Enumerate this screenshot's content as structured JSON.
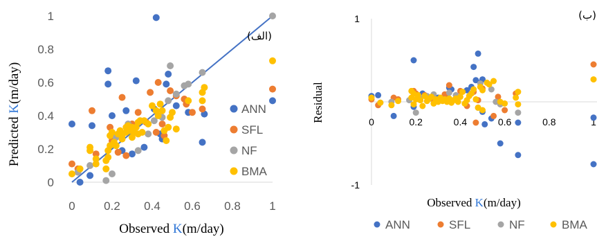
{
  "colors": {
    "ANN": "#4472c4",
    "SFL": "#ed7d31",
    "NF": "#a5a5a5",
    "BMA": "#ffc000",
    "fit_line": "#4472c4",
    "axis": "#d9d9d9",
    "k_text": "#2e75d6"
  },
  "chart_data": [
    {
      "type": "scatter",
      "panel_label": "(الف)",
      "ylabel_prefix": "Predicted ",
      "ylabel_k": "K",
      "ylabel_suffix": "(m/day)",
      "xlabel_prefix": "Observed ",
      "xlabel_k": "K",
      "xlabel_suffix": "(m/day)",
      "xlim": [
        0,
        1
      ],
      "ylim": [
        0,
        1
      ],
      "xticks": [
        "0",
        "0.2",
        "0.4",
        "0.6",
        "0.8",
        "1"
      ],
      "yticks": [
        "0",
        "0.2",
        "0.4",
        "0.6",
        "0.8",
        "1"
      ],
      "grid": false,
      "legend_position": "right",
      "reference_line": [
        [
          0,
          0
        ],
        [
          1,
          1
        ]
      ],
      "series": [
        {
          "name": "ANN",
          "points": [
            [
              0.0,
              0.35
            ],
            [
              0.04,
              0.0
            ],
            [
              0.09,
              0.04
            ],
            [
              0.1,
              0.34
            ],
            [
              0.18,
              0.59
            ],
            [
              0.18,
              0.67
            ],
            [
              0.2,
              0.4
            ],
            [
              0.25,
              0.19
            ],
            [
              0.27,
              0.43
            ],
            [
              0.28,
              0.31
            ],
            [
              0.3,
              0.17
            ],
            [
              0.32,
              0.61
            ],
            [
              0.36,
              0.21
            ],
            [
              0.41,
              0.44
            ],
            [
              0.42,
              0.99
            ],
            [
              0.44,
              0.29
            ],
            [
              0.45,
              0.26
            ],
            [
              0.47,
              0.59
            ],
            [
              0.48,
              0.65
            ],
            [
              0.52,
              0.46
            ],
            [
              0.58,
              0.42
            ],
            [
              0.65,
              0.24
            ],
            [
              0.66,
              0.41
            ],
            [
              1.0,
              0.49
            ]
          ]
        },
        {
          "name": "SFL",
          "points": [
            [
              0.0,
              0.11
            ],
            [
              0.03,
              0.08
            ],
            [
              0.1,
              0.43
            ],
            [
              0.12,
              0.17
            ],
            [
              0.19,
              0.33
            ],
            [
              0.2,
              0.25
            ],
            [
              0.23,
              0.18
            ],
            [
              0.25,
              0.51
            ],
            [
              0.27,
              0.16
            ],
            [
              0.3,
              0.35
            ],
            [
              0.33,
              0.42
            ],
            [
              0.37,
              0.36
            ],
            [
              0.39,
              0.54
            ],
            [
              0.42,
              0.3
            ],
            [
              0.43,
              0.6
            ],
            [
              0.45,
              0.35
            ],
            [
              0.46,
              0.28
            ],
            [
              0.49,
              0.55
            ],
            [
              0.52,
              0.52
            ],
            [
              0.56,
              0.5
            ],
            [
              0.57,
              0.47
            ],
            [
              0.6,
              0.42
            ],
            [
              0.65,
              0.44
            ],
            [
              1.0,
              0.56
            ]
          ]
        },
        {
          "name": "NF",
          "points": [
            [
              0.03,
              0.06
            ],
            [
              0.09,
              0.1
            ],
            [
              0.17,
              0.01
            ],
            [
              0.2,
              0.05
            ],
            [
              0.22,
              0.27
            ],
            [
              0.28,
              0.35
            ],
            [
              0.33,
              0.19
            ],
            [
              0.38,
              0.29
            ],
            [
              0.41,
              0.37
            ],
            [
              0.45,
              0.39
            ],
            [
              0.48,
              0.49
            ],
            [
              0.49,
              0.7
            ],
            [
              0.52,
              0.53
            ],
            [
              0.56,
              0.58
            ],
            [
              0.58,
              0.59
            ],
            [
              0.65,
              0.66
            ],
            [
              1.0,
              1.0
            ]
          ]
        },
        {
          "name": "BMA",
          "points": [
            [
              0.0,
              0.05
            ],
            [
              0.04,
              0.08
            ],
            [
              0.09,
              0.19
            ],
            [
              0.09,
              0.21
            ],
            [
              0.12,
              0.11
            ],
            [
              0.12,
              0.14
            ],
            [
              0.17,
              0.08
            ],
            [
              0.17,
              0.13
            ],
            [
              0.18,
              0.15
            ],
            [
              0.18,
              0.19
            ],
            [
              0.19,
              0.22
            ],
            [
              0.19,
              0.28
            ],
            [
              0.2,
              0.3
            ],
            [
              0.21,
              0.24
            ],
            [
              0.22,
              0.22
            ],
            [
              0.23,
              0.29
            ],
            [
              0.24,
              0.31
            ],
            [
              0.25,
              0.26
            ],
            [
              0.25,
              0.28
            ],
            [
              0.27,
              0.3
            ],
            [
              0.27,
              0.33
            ],
            [
              0.28,
              0.34
            ],
            [
              0.29,
              0.31
            ],
            [
              0.3,
              0.27
            ],
            [
              0.3,
              0.33
            ],
            [
              0.31,
              0.3
            ],
            [
              0.32,
              0.33
            ],
            [
              0.33,
              0.29
            ],
            [
              0.33,
              0.36
            ],
            [
              0.34,
              0.37
            ],
            [
              0.35,
              0.3
            ],
            [
              0.36,
              0.37
            ],
            [
              0.38,
              0.35
            ],
            [
              0.4,
              0.46
            ],
            [
              0.42,
              0.43
            ],
            [
              0.43,
              0.4
            ],
            [
              0.44,
              0.47
            ],
            [
              0.45,
              0.43
            ],
            [
              0.46,
              0.31
            ],
            [
              0.47,
              0.25
            ],
            [
              0.48,
              0.33
            ],
            [
              0.49,
              0.39
            ],
            [
              0.5,
              0.42
            ],
            [
              0.52,
              0.32
            ],
            [
              0.58,
              0.49
            ],
            [
              0.65,
              0.49
            ],
            [
              0.65,
              0.54
            ],
            [
              0.66,
              0.57
            ],
            [
              1.0,
              0.73
            ]
          ]
        }
      ]
    },
    {
      "type": "scatter",
      "panel_label": "(ب)",
      "ylabel": "Residual",
      "xlabel_prefix": "Observed ",
      "xlabel_k": "K",
      "xlabel_suffix": "(m/day)",
      "xlim": [
        0,
        1
      ],
      "ylim": [
        -1,
        1
      ],
      "xticks": [
        "0",
        "0.2",
        "0.4",
        "0.6",
        "0.8",
        "1"
      ],
      "yticks_shown": [
        "1",
        "-1"
      ],
      "grid": false,
      "legend_position": "bottom",
      "series": [
        {
          "name": "ANN",
          "points": [
            [
              0.0,
              0.07
            ],
            [
              0.03,
              0.08
            ],
            [
              0.1,
              -0.17
            ],
            [
              0.19,
              0.5
            ],
            [
              0.19,
              -0.06
            ],
            [
              0.23,
              0.1
            ],
            [
              0.28,
              0.05
            ],
            [
              0.3,
              0.05
            ],
            [
              0.34,
              0.05
            ],
            [
              0.35,
              0.17
            ],
            [
              0.36,
              0.15
            ],
            [
              0.43,
              0.14
            ],
            [
              0.45,
              0.18
            ],
            [
              0.46,
              0.42
            ],
            [
              0.47,
              0.26
            ],
            [
              0.48,
              0.58
            ],
            [
              0.49,
              0.23
            ],
            [
              0.5,
              0.27
            ],
            [
              0.5,
              -0.12
            ],
            [
              0.51,
              -0.27
            ],
            [
              0.54,
              -0.2
            ],
            [
              0.58,
              -0.5
            ],
            [
              0.66,
              -0.64
            ],
            [
              0.66,
              -0.25
            ],
            [
              1.0,
              -0.19
            ],
            [
              1.0,
              -0.75
            ]
          ]
        },
        {
          "name": "SFL",
          "points": [
            [
              0.0,
              0.03
            ],
            [
              0.03,
              -0.04
            ],
            [
              0.1,
              0.05
            ],
            [
              0.12,
              0.03
            ],
            [
              0.19,
              0.13
            ],
            [
              0.2,
              0.1
            ],
            [
              0.24,
              0.08
            ],
            [
              0.27,
              0.04
            ],
            [
              0.33,
              0.09
            ],
            [
              0.35,
              0.2
            ],
            [
              0.4,
              0.13
            ],
            [
              0.43,
              -0.05
            ],
            [
              0.46,
              0.12
            ],
            [
              0.47,
              -0.25
            ],
            [
              0.48,
              0.02
            ],
            [
              0.5,
              0.16
            ],
            [
              0.55,
              -0.17
            ],
            [
              0.57,
              0.06
            ],
            [
              0.6,
              -0.1
            ],
            [
              0.65,
              0.1
            ],
            [
              1.0,
              0.45
            ]
          ]
        },
        {
          "name": "NF",
          "points": [
            [
              0.04,
              -0.01
            ],
            [
              0.09,
              0.0
            ],
            [
              0.17,
              0.02
            ],
            [
              0.2,
              -0.13
            ],
            [
              0.22,
              0.05
            ],
            [
              0.25,
              0.07
            ],
            [
              0.28,
              0.09
            ],
            [
              0.35,
              0.11
            ],
            [
              0.38,
              0.08
            ],
            [
              0.45,
              0.1
            ],
            [
              0.48,
              -0.07
            ],
            [
              0.49,
              0.22
            ],
            [
              0.54,
              0.15
            ],
            [
              0.56,
              0.0
            ],
            [
              0.58,
              -0.03
            ],
            [
              0.66,
              -0.13
            ]
          ]
        },
        {
          "name": "BMA",
          "points": [
            [
              0.0,
              0.05
            ],
            [
              0.04,
              -0.01
            ],
            [
              0.09,
              -0.04
            ],
            [
              0.12,
              0.01
            ],
            [
              0.18,
              0.13
            ],
            [
              0.18,
              0.05
            ],
            [
              0.19,
              0.1
            ],
            [
              0.19,
              -0.03
            ],
            [
              0.2,
              0.03
            ],
            [
              0.21,
              0.08
            ],
            [
              0.22,
              0.02
            ],
            [
              0.23,
              -0.05
            ],
            [
              0.24,
              0.07
            ],
            [
              0.25,
              0.01
            ],
            [
              0.26,
              0.04
            ],
            [
              0.27,
              0.06
            ],
            [
              0.28,
              -0.02
            ],
            [
              0.29,
              0.03
            ],
            [
              0.3,
              0.0
            ],
            [
              0.31,
              0.05
            ],
            [
              0.32,
              0.01
            ],
            [
              0.33,
              0.03
            ],
            [
              0.34,
              0.0
            ],
            [
              0.35,
              0.04
            ],
            [
              0.36,
              -0.01
            ],
            [
              0.37,
              0.02
            ],
            [
              0.38,
              0.04
            ],
            [
              0.39,
              0.0
            ],
            [
              0.4,
              0.06
            ],
            [
              0.41,
              0.12
            ],
            [
              0.42,
              -0.02
            ],
            [
              0.43,
              0.02
            ],
            [
              0.44,
              0.07
            ],
            [
              0.45,
              0.1
            ],
            [
              0.46,
              0.15
            ],
            [
              0.47,
              0.03
            ],
            [
              0.48,
              -0.07
            ],
            [
              0.49,
              0.18
            ],
            [
              0.5,
              0.14
            ],
            [
              0.5,
              -0.1
            ],
            [
              0.52,
              0.23
            ],
            [
              0.53,
              0.21
            ],
            [
              0.55,
              0.25
            ],
            [
              0.58,
              0.0
            ],
            [
              0.6,
              -0.02
            ],
            [
              0.65,
              0.05
            ],
            [
              0.66,
              -0.03
            ],
            [
              0.66,
              0.12
            ],
            [
              1.0,
              0.27
            ]
          ]
        }
      ]
    }
  ]
}
